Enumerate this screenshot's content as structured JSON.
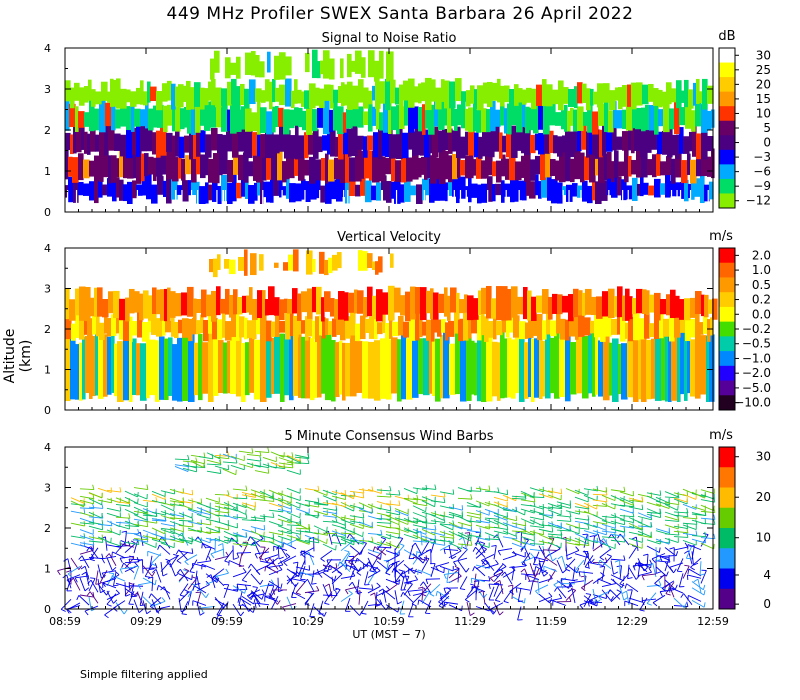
{
  "figure": {
    "title": "449 MHz Profiler SWEX Santa Barbara 26 April 2022",
    "ylabel": "Altitude (km)",
    "xlabel": "UT  (MST − 7)",
    "footnote": "Simple filtering applied",
    "x_ticks": [
      "08:59",
      "09:29",
      "09:59",
      "10:29",
      "10:59",
      "11:29",
      "11:59",
      "12:29",
      "12:59"
    ]
  },
  "chart_data": [
    {
      "type": "heatmap",
      "title": "Signal to Noise Ratio",
      "unit": "dB",
      "ylim": [
        0,
        4
      ],
      "y_ticks": [
        "0",
        "1",
        "2",
        "3",
        "4"
      ],
      "colorbar_labels": [
        "30",
        "25",
        "20",
        "15",
        "10",
        "5",
        "0",
        "−3",
        "−6",
        "−9",
        "−12"
      ],
      "colorbar_colors": [
        "#ffffff",
        "#ffff00",
        "#ffcc00",
        "#ff9900",
        "#ff3300",
        "#660066",
        "#4b0082",
        "#0000ff",
        "#00aaff",
        "#00dd66",
        "#88ee00"
      ],
      "bands": [
        {
          "range_km": [
            0.3,
            0.8
          ],
          "value_db": -3
        },
        {
          "range_km": [
            0.8,
            1.4
          ],
          "value_db": 5
        },
        {
          "range_km": [
            1.4,
            2.0
          ],
          "value_db": 0
        },
        {
          "range_km": [
            2.0,
            2.6
          ],
          "value_db": -9
        },
        {
          "range_km": [
            2.6,
            3.1
          ],
          "value_db": -12
        },
        {
          "range_km": [
            3.3,
            3.8
          ],
          "value_db": -12
        }
      ]
    },
    {
      "type": "heatmap",
      "title": "Vertical Velocity",
      "unit": "m/s",
      "ylim": [
        0,
        4
      ],
      "y_ticks": [
        "0",
        "1",
        "2",
        "3",
        "4"
      ],
      "colorbar_labels": [
        "2.0",
        "1.0",
        "0.5",
        "0.2",
        "0.0",
        "−0.2",
        "−0.5",
        "−1.0",
        "−2.0",
        "−5.0",
        "−10.0"
      ],
      "colorbar_colors": [
        "#ff0000",
        "#ff6600",
        "#ff9900",
        "#ffcc00",
        "#ffff00",
        "#44dd00",
        "#00ccaa",
        "#0088ff",
        "#2200ff",
        "#550099",
        "#220022"
      ],
      "bands": [
        {
          "range_km": [
            0.3,
            1.8
          ],
          "value_ms": 0.0
        },
        {
          "range_km": [
            1.8,
            2.3
          ],
          "value_ms": 0.2
        },
        {
          "range_km": [
            2.3,
            2.9
          ],
          "value_ms": 0.5
        },
        {
          "range_km": [
            3.4,
            3.8
          ],
          "value_ms": 0.2
        }
      ]
    },
    {
      "type": "scatter",
      "title": "5 Minute Consensus Wind Barbs",
      "unit": "m/s",
      "ylim": [
        0,
        4
      ],
      "y_ticks": [
        "0",
        "1",
        "2",
        "3",
        "4"
      ],
      "colorbar_labels": [
        "30",
        "20",
        "10",
        "4",
        "0"
      ],
      "colorbar_colors": [
        "#ff0000",
        "#ff7700",
        "#ffbb00",
        "#66cc00",
        "#00bb66",
        "#2299ff",
        "#0000ee",
        "#550088"
      ],
      "layers": [
        {
          "range_km": [
            0.0,
            1.6
          ],
          "speed_ms": 3
        },
        {
          "range_km": [
            1.6,
            2.6
          ],
          "speed_ms": 8
        },
        {
          "range_km": [
            2.6,
            3.0
          ],
          "speed_ms": 12
        },
        {
          "range_km": [
            3.4,
            3.9
          ],
          "speed_ms": 10
        }
      ]
    }
  ]
}
